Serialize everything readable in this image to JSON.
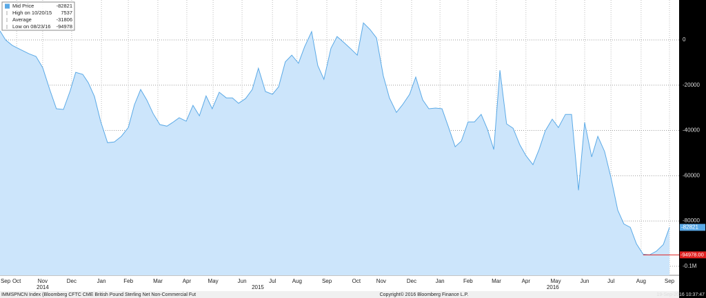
{
  "chart_data": {
    "type": "area",
    "color": "#5aa9e6",
    "fill": "#cce5fb",
    "x": [
      -0.07,
      0.12,
      0.35,
      0.64,
      0.92,
      1.16,
      1.39,
      1.63,
      1.86,
      2.1,
      2.33,
      2.52,
      2.76,
      2.95,
      3.16,
      3.37,
      3.61,
      3.84,
      4.08,
      4.32,
      4.53,
      4.74,
      4.95,
      5.17,
      5.4,
      5.64,
      5.83,
      6.06,
      6.3,
      6.53,
      6.75,
      6.98,
      7.19,
      7.43,
      7.67,
      7.88,
      8.09,
      8.33,
      8.56,
      8.77,
      9.01,
      9.25,
      9.46,
      9.69,
      9.91,
      10.14,
      10.35,
      10.59,
      10.8,
      11.01,
      11.25,
      11.46,
      11.7,
      11.91,
      12.15,
      12.36,
      12.59,
      12.81,
      13.04,
      13.25,
      13.49,
      13.7,
      13.94,
      14.15,
      14.39,
      14.6,
      14.83,
      15.05,
      15.26,
      15.5,
      15.71,
      15.94,
      16.16,
      16.39,
      16.6,
      16.82,
      17.03,
      17.26,
      17.48,
      17.71,
      17.92,
      18.16,
      18.37,
      18.58,
      18.82,
      19.03,
      19.27,
      19.48,
      19.72,
      19.93,
      20.17,
      20.38,
      20.61,
      20.83,
      21.06,
      21.27,
      21.49,
      21.7,
      21.93,
      22.15,
      22.38,
      22.62,
      22.83
    ],
    "series": [
      {
        "name": "Mid Price",
        "color": "#5aa9e6",
        "values": [
          4000,
          0,
          -2400,
          -4300,
          -6100,
          -7300,
          -12200,
          -21900,
          -30400,
          -30700,
          -22500,
          -14300,
          -15200,
          -18900,
          -25000,
          -35900,
          -45400,
          -45100,
          -42600,
          -38700,
          -28600,
          -21900,
          -26500,
          -32600,
          -37400,
          -38100,
          -36500,
          -34400,
          -35900,
          -28900,
          -33500,
          -24700,
          -30400,
          -23100,
          -25600,
          -25600,
          -28000,
          -25900,
          -21900,
          -12500,
          -22800,
          -24000,
          -20700,
          -9700,
          -6700,
          -10300,
          -3000,
          3700,
          -11300,
          -17400,
          -3700,
          1500,
          -1200,
          -3700,
          -6700,
          7537,
          4600,
          900,
          -15800,
          -25600,
          -32000,
          -28600,
          -24000,
          -16400,
          -26500,
          -30400,
          -30100,
          -30400,
          -38100,
          -47200,
          -44700,
          -36200,
          -36200,
          -32900,
          -39300,
          -48400,
          -13400,
          -37100,
          -39000,
          -46300,
          -51100,
          -55100,
          -48400,
          -40200,
          -35000,
          -38700,
          -32900,
          -32900,
          -66400,
          -36500,
          -51700,
          -42600,
          -49300,
          -60900,
          -75200,
          -81300,
          -82800,
          -90100,
          -94700,
          -94978,
          -93400,
          -90400,
          -82821
        ]
      }
    ],
    "xlim": [
      -0.07,
      23.16
    ],
    "ylim": [
      -104000,
      17650
    ],
    "xticks": [
      {
        "value": 0.12,
        "label": "Sep"
      },
      {
        "value": 0.5,
        "label": "Oct"
      },
      {
        "value": 1.39,
        "label": "Nov"
      },
      {
        "value": 2.38,
        "label": "Dec"
      },
      {
        "value": 3.4,
        "label": "Jan"
      },
      {
        "value": 4.32,
        "label": "Feb"
      },
      {
        "value": 5.33,
        "label": "Mar"
      },
      {
        "value": 6.32,
        "label": "Apr"
      },
      {
        "value": 7.22,
        "label": "May"
      },
      {
        "value": 8.21,
        "label": "Jun"
      },
      {
        "value": 9.25,
        "label": "Jul"
      },
      {
        "value": 10.09,
        "label": "Aug"
      },
      {
        "value": 11.11,
        "label": "Sep"
      },
      {
        "value": 12.12,
        "label": "Oct"
      },
      {
        "value": 12.97,
        "label": "Nov"
      },
      {
        "value": 14.01,
        "label": "Dec"
      },
      {
        "value": 14.98,
        "label": "Jan"
      },
      {
        "value": 15.94,
        "label": "Feb"
      },
      {
        "value": 16.91,
        "label": "Mar"
      },
      {
        "value": 17.92,
        "label": "Apr"
      },
      {
        "value": 18.94,
        "label": "May"
      },
      {
        "value": 19.93,
        "label": "Jun"
      },
      {
        "value": 20.83,
        "label": "Jul"
      },
      {
        "value": 21.86,
        "label": "Aug"
      },
      {
        "value": 22.83,
        "label": "Sep"
      }
    ],
    "year_ticks": [
      {
        "value": 1.39,
        "label": "2014"
      },
      {
        "value": 8.75,
        "label": "2015"
      },
      {
        "value": 18.84,
        "label": "2016"
      }
    ],
    "yticks": [
      0,
      -20000,
      -40000,
      -60000,
      -80000,
      {
        "value": -100000,
        "label": "-0.1M"
      }
    ],
    "grid": true,
    "low_line": {
      "value": -94978,
      "label": "-94978.00",
      "color": "#e02020"
    },
    "legend": [
      {
        "label": "Mid Price",
        "value": -82821
      },
      {
        "label": "High on 10/20/15",
        "value": 7537
      },
      {
        "label": "Average",
        "value": -31806
      },
      {
        "label": "Low on 08/23/16",
        "value": -94978
      }
    ],
    "footer": {
      "left": "IMMSPNCN Index (Bloomberg CFTC CME British Pound Sterling Net Non-Commercial Fut",
      "center": "Copyright© 2016 Bloomberg Finance L.P.",
      "right": "19-Sep-2016 10:37:47"
    }
  }
}
